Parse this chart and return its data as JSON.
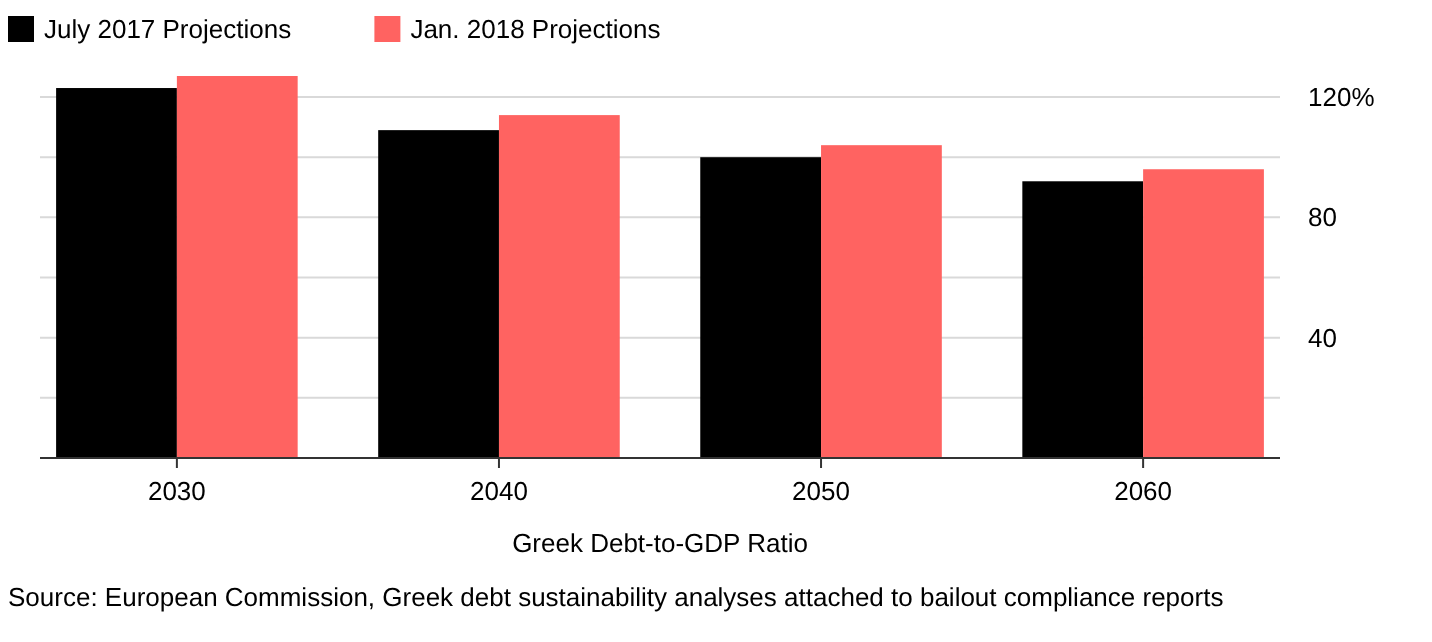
{
  "chart_data": {
    "type": "bar",
    "xlabel": "Greek Debt-to-GDP Ratio",
    "categories": [
      "2030",
      "2040",
      "2050",
      "2060"
    ],
    "series": [
      {
        "name": "July 2017 Projections",
        "color": "#000000",
        "values": [
          123,
          109,
          100,
          92
        ]
      },
      {
        "name": "Jan. 2018 Projections",
        "color": "#ff6361",
        "values": [
          127,
          114,
          104,
          96
        ]
      }
    ],
    "yticks": [
      {
        "value": 20,
        "label": null
      },
      40,
      {
        "value": 60,
        "label": null
      },
      80,
      {
        "value": 100,
        "label": null
      },
      {
        "value": 120,
        "label": "120%"
      }
    ],
    "ylim": [
      0,
      127
    ],
    "grid": "y",
    "legend": "top left",
    "annotations": [
      "Source: European Commission, Greek debt sustainability analyses attached to bailout compliance reports"
    ]
  }
}
